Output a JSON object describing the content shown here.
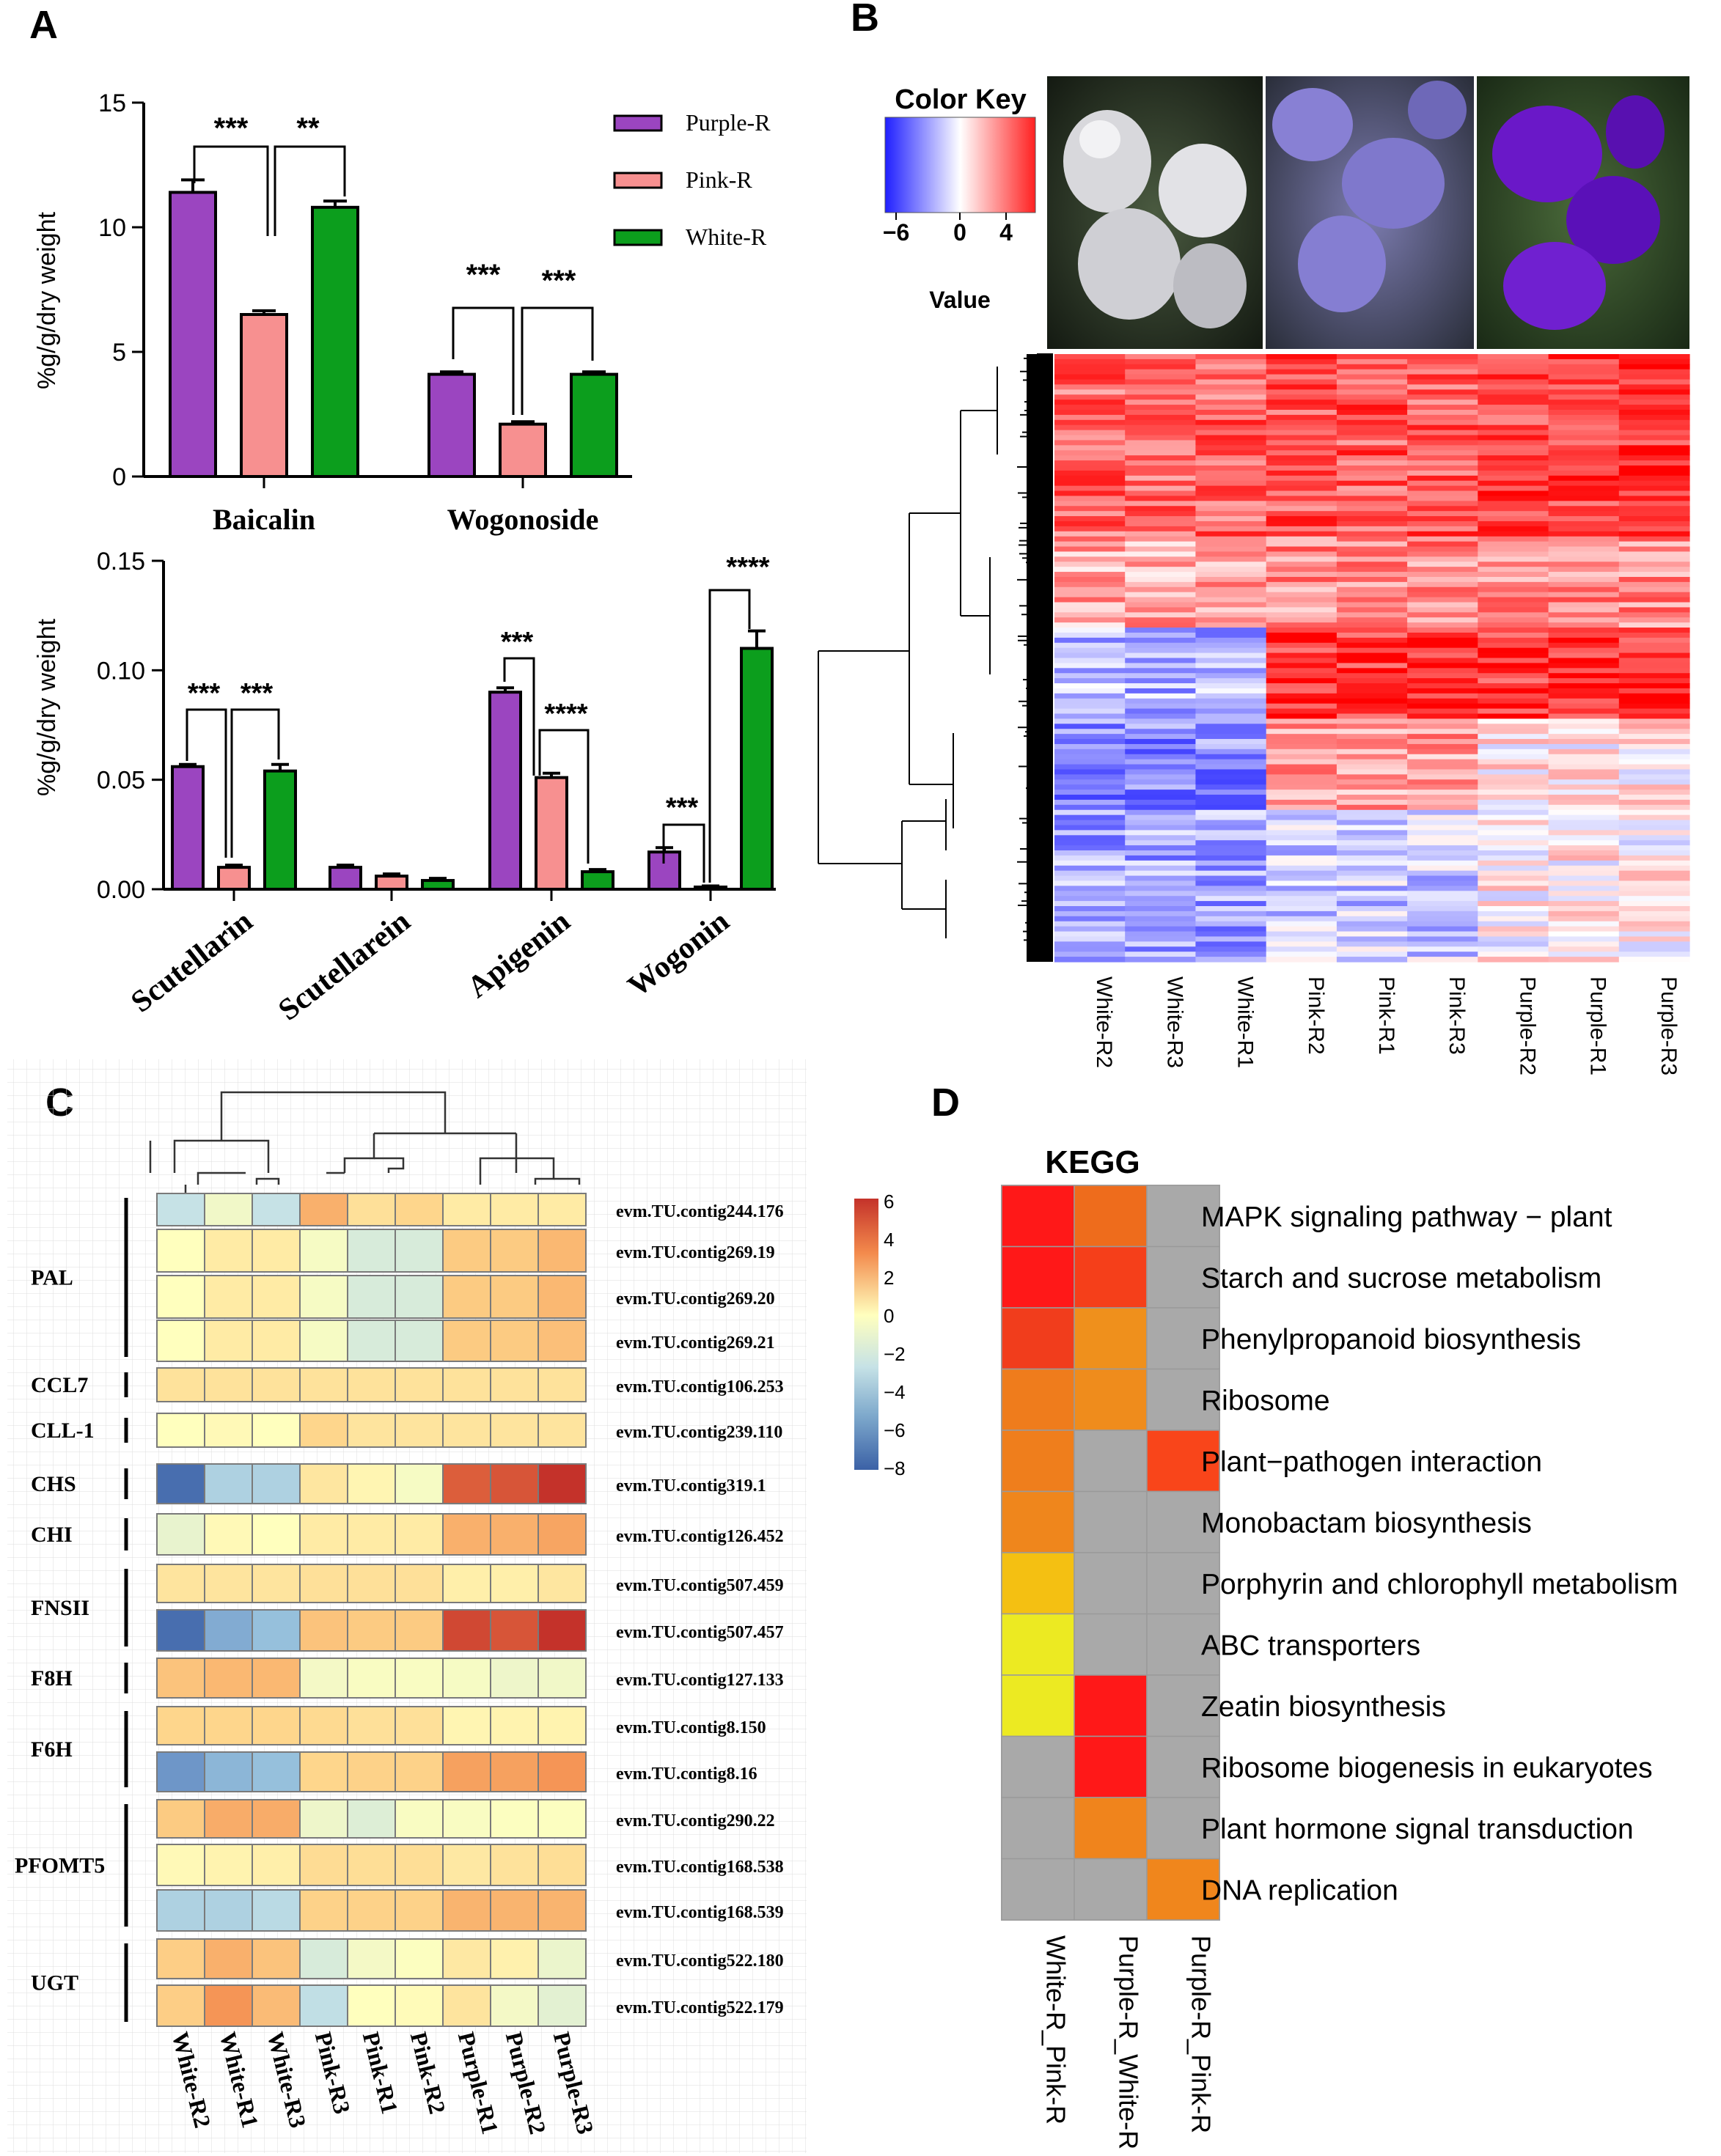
{
  "panel_labels": {
    "A": "A",
    "B": "B",
    "C": "C",
    "D": "D"
  },
  "colors": {
    "purple": "#9b45c0",
    "pink": "#f79090",
    "green": "#0c9e1d",
    "grid": "#d8d8d8"
  },
  "chart_data": [
    {
      "id": "A1",
      "type": "bar",
      "ylabel": "%g/g/dry weight",
      "ylim": [
        0,
        15
      ],
      "yticks": [
        "0",
        "5",
        "10",
        "15"
      ],
      "categories": [
        "Baicalin",
        "Wogonoside"
      ],
      "series": [
        {
          "name": "Purple-R",
          "values": [
            11.4,
            4.1
          ],
          "errors": [
            0.5,
            0.1
          ]
        },
        {
          "name": "Pink-R",
          "values": [
            6.5,
            2.1
          ],
          "errors": [
            0.15,
            0.1
          ]
        },
        {
          "name": "White-R",
          "values": [
            10.8,
            4.1
          ],
          "errors": [
            0.25,
            0.1
          ]
        }
      ],
      "significance": [
        "***",
        "**",
        "***",
        "***"
      ],
      "legend": [
        "Purple-R",
        "Pink-R",
        "White-R"
      ]
    },
    {
      "id": "A2",
      "type": "bar",
      "ylabel": "%g/g/dry weight",
      "ylim": [
        0,
        0.15
      ],
      "yticks": [
        "0.00",
        "0.05",
        "0.10",
        "0.15"
      ],
      "categories": [
        "Scutellarin",
        "Scutellarein",
        "Apigenin",
        "Wogonin"
      ],
      "series": [
        {
          "name": "Purple-R",
          "values": [
            0.056,
            0.01,
            0.09,
            0.017
          ],
          "errors": [
            0.001,
            0.001,
            0.002,
            0.002
          ]
        },
        {
          "name": "Pink-R",
          "values": [
            0.01,
            0.006,
            0.051,
            0.001
          ],
          "errors": [
            0.001,
            0.001,
            0.002,
            0.0005
          ]
        },
        {
          "name": "White-R",
          "values": [
            0.054,
            0.004,
            0.008,
            0.11
          ],
          "errors": [
            0.003,
            0.001,
            0.001,
            0.008
          ]
        }
      ],
      "significance": [
        "***",
        "***",
        "***",
        "****",
        "***",
        "****"
      ]
    },
    {
      "id": "B",
      "type": "heatmap",
      "title": "Color Key",
      "colorbar_label": "Value",
      "colorbar_ticks": [
        "−6",
        "0",
        "4"
      ],
      "columns": [
        "White-R2",
        "White-R3",
        "White-R1",
        "Pink-R2",
        "Pink-R1",
        "Pink-R3",
        "Purple-R2",
        "Purple-R1",
        "Purple-R3"
      ]
    },
    {
      "id": "C",
      "type": "heatmap",
      "columns": [
        "White-R2",
        "White-R1",
        "White-R3",
        "Pink-R3",
        "Pink-R1",
        "Pink-R2",
        "Purple-R1",
        "Purple-R2",
        "Purple-R3"
      ],
      "colorbar_ticks": [
        "6",
        "4",
        "2",
        "0",
        "−2",
        "−4",
        "−6",
        "−8"
      ],
      "groups": [
        {
          "name": "PAL",
          "rows": [
            0,
            3
          ]
        },
        {
          "name": "CCL7",
          "rows": [
            4,
            4
          ]
        },
        {
          "name": "CLL-1",
          "rows": [
            5,
            5
          ]
        },
        {
          "name": "CHS",
          "rows": [
            6,
            6
          ]
        },
        {
          "name": "CHI",
          "rows": [
            7,
            7
          ]
        },
        {
          "name": "FNSII",
          "rows": [
            8,
            9
          ]
        },
        {
          "name": "F8H",
          "rows": [
            10,
            10
          ]
        },
        {
          "name": "F6H",
          "rows": [
            11,
            12
          ]
        },
        {
          "name": "PFOMT5",
          "rows": [
            13,
            15
          ]
        },
        {
          "name": "UGT",
          "rows": [
            16,
            17
          ]
        }
      ],
      "rows": [
        {
          "gene": "evm.TU.contig244.176",
          "values": [
            -2,
            -0.5,
            -2,
            3,
            1.5,
            2,
            1,
            1,
            1
          ]
        },
        {
          "gene": "evm.TU.contig269.19",
          "values": [
            0,
            1,
            1,
            -0.3,
            -1.4,
            -1.4,
            2.3,
            2.3,
            2.8
          ]
        },
        {
          "gene": "evm.TU.contig269.20",
          "values": [
            0,
            1,
            1,
            -0.3,
            -1.4,
            -1.4,
            2.3,
            2.3,
            2.8
          ]
        },
        {
          "gene": "evm.TU.contig269.21",
          "values": [
            0,
            1,
            1,
            -0.3,
            -1.4,
            -1.4,
            2.3,
            2.3,
            2.6
          ]
        },
        {
          "gene": "evm.TU.contig106.253",
          "values": [
            1.4,
            1.4,
            1.4,
            1.4,
            1.4,
            1.4,
            1.4,
            1.4,
            1.4
          ]
        },
        {
          "gene": "evm.TU.contig239.110",
          "values": [
            0,
            0.3,
            0,
            2,
            1.3,
            1.3,
            1.3,
            1.3,
            1.3
          ]
        },
        {
          "gene": "evm.TU.contig319.1",
          "values": [
            -7.5,
            -3,
            -3,
            1.2,
            0.5,
            -0.3,
            5,
            5.2,
            6.5
          ]
        },
        {
          "gene": "evm.TU.contig126.452",
          "values": [
            -0.8,
            0.3,
            0,
            1,
            1,
            1,
            3,
            3,
            3.3
          ]
        },
        {
          "gene": "evm.TU.contig507.459",
          "values": [
            1.3,
            1.3,
            1.3,
            1.5,
            1.5,
            1.5,
            0.8,
            0.8,
            1.2
          ]
        },
        {
          "gene": "evm.TU.contig507.457",
          "values": [
            -7.5,
            -5,
            -4,
            2.5,
            2.3,
            2.3,
            5.5,
            5.2,
            6
          ]
        },
        {
          "gene": "evm.TU.contig127.133",
          "values": [
            2.5,
            2.8,
            2.8,
            -0.4,
            -0.2,
            -0.2,
            -0.3,
            -0.6,
            -0.5
          ]
        },
        {
          "gene": "evm.TU.contig8.150",
          "values": [
            2,
            2,
            2,
            1.8,
            1.5,
            1.5,
            0.5,
            0.6,
            0.6
          ]
        },
        {
          "gene": "evm.TU.contig8.16",
          "values": [
            -6,
            -4.5,
            -4,
            2,
            2.1,
            2.1,
            3.4,
            3.4,
            3.7
          ]
        },
        {
          "gene": "evm.TU.contig290.22",
          "values": [
            2.3,
            3.1,
            3.1,
            -0.6,
            -1.2,
            -0.2,
            -0.2,
            -0.1,
            -0.1
          ]
        },
        {
          "gene": "evm.TU.contig168.538",
          "values": [
            0.3,
            0.6,
            0.8,
            1.7,
            1.6,
            1.6,
            1.1,
            1.4,
            1.6
          ]
        },
        {
          "gene": "evm.TU.contig168.539",
          "values": [
            -3,
            -3,
            -2.5,
            2.1,
            2.1,
            2.1,
            2.9,
            2.9,
            2.9
          ]
        },
        {
          "gene": "evm.TU.contig522.180",
          "values": [
            2.2,
            3,
            2.5,
            -1.4,
            -0.4,
            -0.1,
            1.1,
            0.7,
            -0.7
          ]
        },
        {
          "gene": "evm.TU.contig522.179",
          "values": [
            2.2,
            3.7,
            2.7,
            -2.2,
            0,
            0.2,
            1.3,
            -0.4,
            -1
          ]
        }
      ]
    },
    {
      "id": "D",
      "type": "heatmap",
      "title": "KEGG",
      "columns": [
        "White-R_Pink-R",
        "Purple-R_White-R",
        "Purple-R_Pink-R"
      ],
      "rows": [
        {
          "pathway": "MAPK signaling pathway − plant",
          "cells": [
            "#ff1818",
            "#ee6c1c",
            "#a9a9a9"
          ]
        },
        {
          "pathway": "Starch and sucrose metabolism",
          "cells": [
            "#ff1818",
            "#f53f1a",
            "#a9a9a9"
          ]
        },
        {
          "pathway": "Phenylpropanoid biosynthesis",
          "cells": [
            "#f13d1c",
            "#ef901c",
            "#a9a9a9"
          ]
        },
        {
          "pathway": "Ribosome",
          "cells": [
            "#ef7c1c",
            "#ef8c1c",
            "#a9a9a9"
          ]
        },
        {
          "pathway": "Plant−pathogen interaction",
          "cells": [
            "#ef7e1c",
            "#a9a9a9",
            "#f9451a"
          ]
        },
        {
          "pathway": "Monobactam biosynthesis",
          "cells": [
            "#ef861c",
            "#a9a9a9",
            "#a9a9a9"
          ]
        },
        {
          "pathway": "Porphyrin and chlorophyll metabolism",
          "cells": [
            "#f4c012",
            "#a9a9a9",
            "#a9a9a9"
          ]
        },
        {
          "pathway": "ABC transporters",
          "cells": [
            "#ecea22",
            "#a9a9a9",
            "#a9a9a9"
          ]
        },
        {
          "pathway": "Zeatin biosynthesis",
          "cells": [
            "#ecea22",
            "#ff1818",
            "#a9a9a9"
          ]
        },
        {
          "pathway": "Ribosome biogenesis in eukaryotes",
          "cells": [
            "#a9a9a9",
            "#ff1818",
            "#a9a9a9"
          ]
        },
        {
          "pathway": "Plant hormone signal transduction",
          "cells": [
            "#a9a9a9",
            "#f0841c",
            "#a9a9a9"
          ]
        },
        {
          "pathway": "DNA replication",
          "cells": [
            "#a9a9a9",
            "#a9a9a9",
            "#f0861c"
          ]
        }
      ]
    }
  ]
}
